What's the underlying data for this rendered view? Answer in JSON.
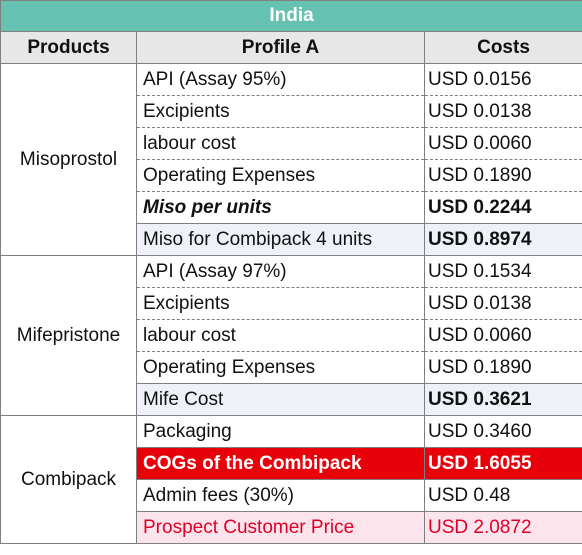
{
  "title": "India",
  "headers": {
    "products": "Products",
    "profile": "Profile A",
    "costs": "Costs"
  },
  "groups": [
    {
      "product": "Misoprostol",
      "rows": [
        {
          "item": "API (Assay 95%)",
          "cost": "USD 0.0156"
        },
        {
          "item": "Excipients",
          "cost": "USD 0.0138"
        },
        {
          "item": "labour cost",
          "cost": "USD 0.0060"
        },
        {
          "item": "Operating Expenses",
          "cost": "USD 0.1890"
        },
        {
          "item": "Miso per units",
          "cost": "USD 0.2244"
        },
        {
          "item": "Miso for Combipack  4 units",
          "cost": "USD 0.8974"
        }
      ]
    },
    {
      "product": "Mifepristone",
      "rows": [
        {
          "item": "API (Assay 97%)",
          "cost": "USD 0.1534"
        },
        {
          "item": "Excipients",
          "cost": "USD 0.0138"
        },
        {
          "item": "labour cost",
          "cost": "USD 0.0060"
        },
        {
          "item": "Operating Expenses",
          "cost": "USD 0.1890"
        },
        {
          "item": "Mife Cost",
          "cost": "USD 0.3621"
        }
      ]
    },
    {
      "product": "Combipack",
      "rows": [
        {
          "item": "Packaging",
          "cost": "USD 0.3460"
        },
        {
          "item": "COGs of the Combipack",
          "cost": "USD 1.6055"
        },
        {
          "item": "Admin fees (30%)",
          "cost": "USD 0.48"
        },
        {
          "item": "Prospect Customer Price",
          "cost": "USD 2.0872"
        }
      ]
    }
  ],
  "colors": {
    "title_bg": "#66c2b0",
    "header_bg": "#e7e7e7",
    "highlight_red": "#e8000a",
    "highlight_pink": "#fce4ec"
  }
}
